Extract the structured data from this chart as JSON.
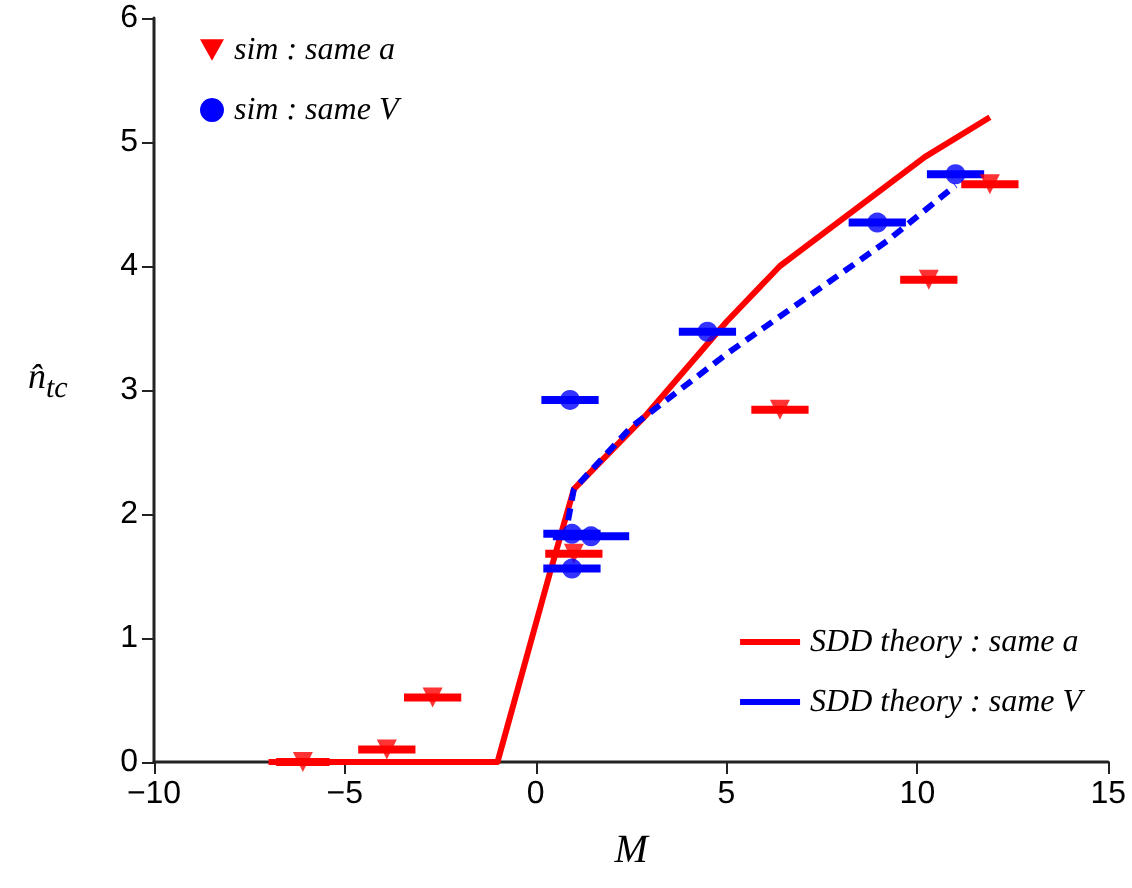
{
  "chart_data": {
    "type": "scatter",
    "xlabel": "M",
    "ylabel": "n̂$_{tc}$",
    "xlim": [
      -10,
      15
    ],
    "xticks": [
      -10,
      -5,
      0,
      5,
      10,
      15
    ],
    "ylim": [
      0,
      6
    ],
    "yticks": [
      0,
      1,
      2,
      3,
      4,
      5,
      6
    ],
    "grid": false,
    "legend": "top left",
    "series": [
      {
        "name": "sim : same a",
        "color": "#ff0000",
        "marker": "triangle",
        "x": [
          -6.1,
          -3.9,
          -2.7,
          1.0,
          6.4,
          10.3,
          11.9
        ],
        "values": [
          0,
          0.1,
          0.52,
          1.68,
          2.84,
          3.89,
          4.66
        ],
        "xerrors": [
          0.7,
          0.75,
          0.75,
          0.75,
          0.75,
          0.75,
          0.75
        ]
      },
      {
        "name": "sim : same V",
        "color": "#0000ff",
        "marker": "circle",
        "x": [
          0.9,
          0.95,
          1.45,
          0.95,
          4.5,
          8.95,
          11.0
        ],
        "values": [
          2.92,
          1.84,
          1.82,
          1.56,
          3.47,
          4.35,
          4.74
        ],
        "xerrors": [
          0.75,
          0.75,
          1.0,
          0.75,
          0.75,
          0.75,
          0.75
        ]
      },
      {
        "type": "line",
        "name": "SDD theory : same a",
        "color": "#ff0000",
        "line_style": "solid",
        "marker": "none",
        "x": [
          -7,
          -1,
          0.35,
          1,
          2.9,
          5,
          6.4,
          10.2,
          11.9
        ],
        "values": [
          0,
          0,
          1.5,
          2.2,
          2.8,
          3.55,
          4.0,
          4.88,
          5.2
        ]
      },
      {
        "type": "line",
        "name": "SDD theory : same V",
        "color": "#0000ff",
        "line_style": "dashed",
        "marker": "none",
        "x": [
          0.85,
          1,
          2.5,
          5,
          9.2,
          11.0
        ],
        "values": [
          1.95,
          2.2,
          2.7,
          3.29,
          4.2,
          4.65
        ]
      }
    ]
  }
}
